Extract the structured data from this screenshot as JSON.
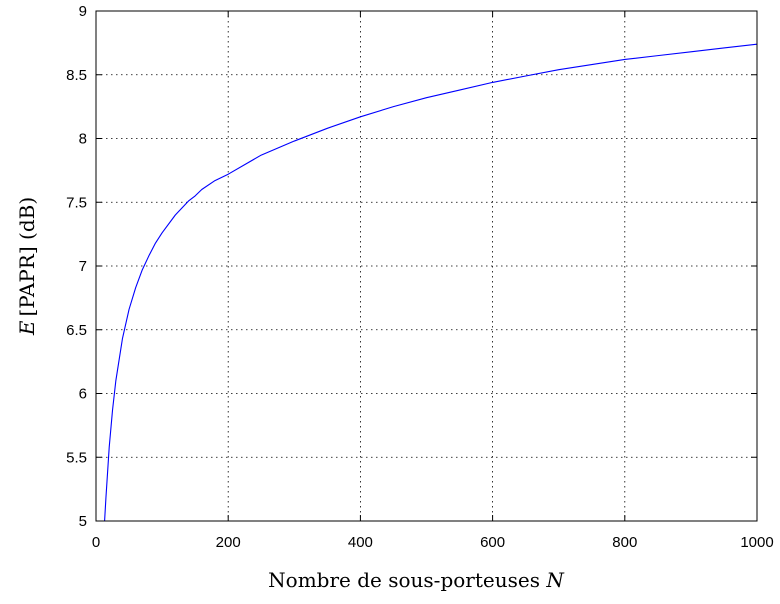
{
  "chart_data": {
    "type": "line",
    "title": "",
    "xlabel_text": "Nombre de sous-porteuses ",
    "xlabel_var": "N",
    "ylabel_var": "E",
    "ylabel_text": "[PAPR] (dB)",
    "xlim": [
      0,
      1000
    ],
    "ylim": [
      5,
      9
    ],
    "x_ticks": [
      0,
      200,
      400,
      600,
      800,
      1000
    ],
    "y_ticks": [
      5,
      5.5,
      6,
      6.5,
      7,
      7.5,
      8,
      8.5,
      9
    ],
    "x_tick_labels": [
      "0",
      "200",
      "400",
      "600",
      "800",
      "1000"
    ],
    "y_tick_labels": [
      "5",
      "5.5",
      "6",
      "6.5",
      "7",
      "7.5",
      "8",
      "8.5",
      "9"
    ],
    "grid": true,
    "series": [
      {
        "color": "#0000ff",
        "x": [
          13,
          15,
          20,
          25,
          30,
          40,
          50,
          60,
          70,
          80,
          90,
          100,
          120,
          140,
          150,
          160,
          180,
          200,
          250,
          300,
          350,
          400,
          450,
          500,
          550,
          600,
          650,
          700,
          750,
          800,
          850,
          900,
          950,
          1000
        ],
        "y": [
          5.0,
          5.18,
          5.58,
          5.87,
          6.1,
          6.43,
          6.66,
          6.83,
          6.97,
          7.08,
          7.18,
          7.26,
          7.4,
          7.51,
          7.55,
          7.6,
          7.67,
          7.72,
          7.87,
          7.98,
          8.08,
          8.17,
          8.25,
          8.32,
          8.38,
          8.44,
          8.49,
          8.54,
          8.58,
          8.62,
          8.65,
          8.68,
          8.71,
          8.74
        ]
      }
    ]
  }
}
